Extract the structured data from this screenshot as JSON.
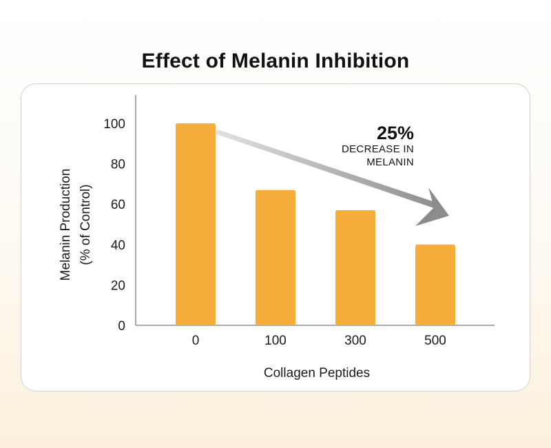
{
  "chart_data": {
    "type": "bar",
    "title": "Effect of Melanin Inhibition",
    "xlabel": "Collagen Peptides",
    "ylabel_lines": [
      "Melanin Production",
      "(% of Control)"
    ],
    "categories": [
      "0",
      "100",
      "300",
      "500"
    ],
    "values": [
      100,
      67,
      57,
      40
    ],
    "yticks": [
      0,
      20,
      40,
      60,
      80,
      100
    ],
    "ylim": [
      0,
      114
    ],
    "grid": false,
    "bar_color": "#f7ad3a",
    "annotation": {
      "headline": "25%",
      "line1": "DECREASE IN",
      "line2": "MELANIN",
      "arrow_color": "#8c8c8c"
    }
  }
}
